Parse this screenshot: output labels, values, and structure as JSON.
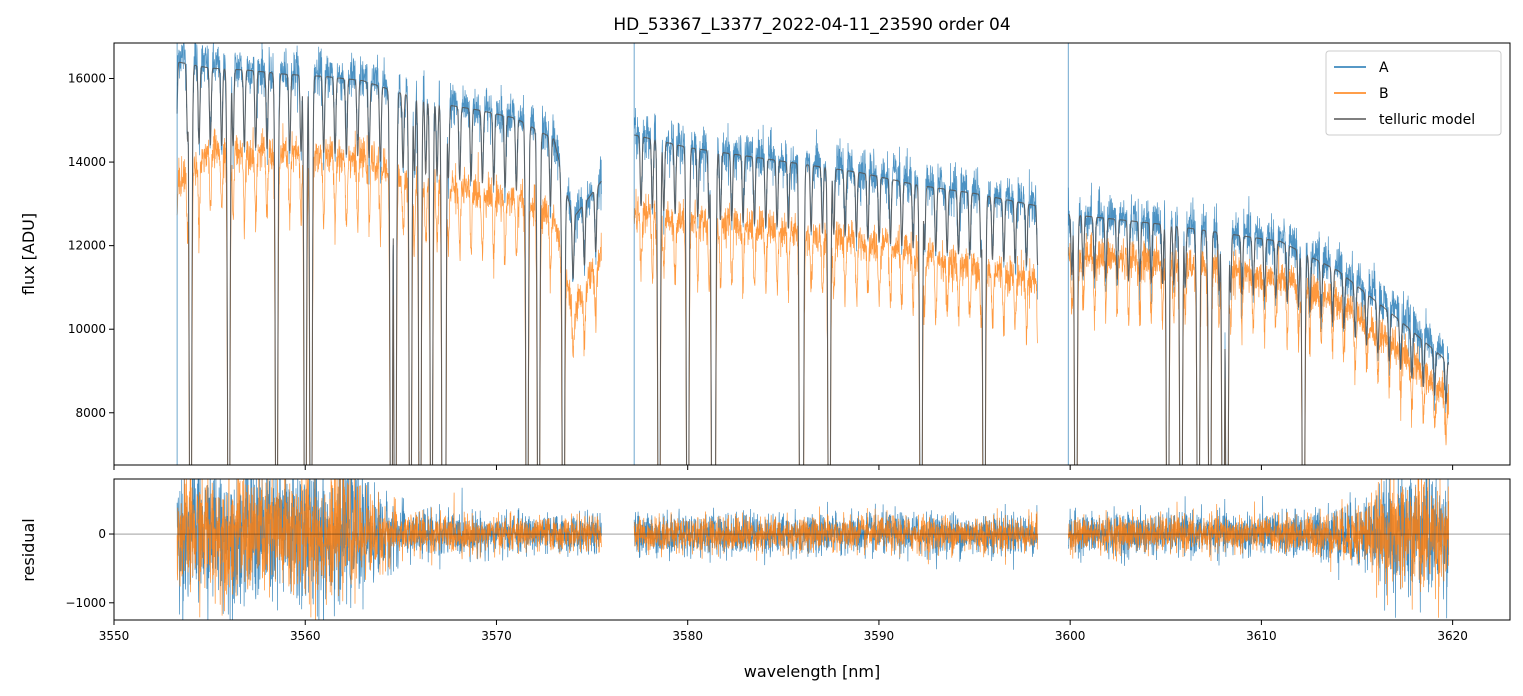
{
  "chart_data": [
    {
      "type": "line",
      "title": "HD_53367_L3377_2022-04-11_23590  order 04",
      "xlabel": "",
      "ylabel": "flux [ADU]",
      "xlim": [
        3550,
        3623
      ],
      "ylim": [
        6750,
        16850
      ],
      "yticks": [
        8000,
        10000,
        12000,
        14000,
        16000
      ],
      "x_tick_labels_hidden": true,
      "legend_position": "top-right",
      "segments": [
        {
          "x_start": 3553.3,
          "x_end": 3575.5
        },
        {
          "x_start": 3577.2,
          "x_end": 3598.3
        },
        {
          "x_start": 3599.9,
          "x_end": 3619.8
        }
      ],
      "series": [
        {
          "name": "A",
          "color": "#1f77b4",
          "x": [
            3553.3,
            3555,
            3557,
            3559,
            3561,
            3563,
            3565,
            3567,
            3569,
            3571,
            3573,
            3574,
            3575.5,
            3577.2,
            3580,
            3583,
            3586,
            3589,
            3592,
            3595,
            3598.3,
            3599.9,
            3602,
            3605,
            3608,
            3611,
            3614,
            3617,
            3619.8
          ],
          "y": [
            16600,
            16300,
            16250,
            16150,
            16100,
            16000,
            15700,
            15450,
            15300,
            15100,
            14600,
            12600,
            13600,
            14700,
            14400,
            14200,
            14000,
            13800,
            13500,
            13300,
            13000,
            12800,
            12700,
            12550,
            12350,
            12150,
            11500,
            10500,
            9300
          ]
        },
        {
          "name": "B",
          "color": "#ff7f0e",
          "x": [
            3553.3,
            3555,
            3557,
            3559,
            3561,
            3563,
            3565,
            3567,
            3569,
            3571,
            3573,
            3574,
            3575.5,
            3577.2,
            3580,
            3583,
            3586,
            3589,
            3592,
            3595,
            3598.3,
            3599.9,
            3602,
            3605,
            3608,
            3611,
            3614,
            3617,
            3619.8
          ],
          "y": [
            13500,
            14300,
            14250,
            14200,
            14150,
            14100,
            13700,
            13500,
            13300,
            13100,
            12700,
            10400,
            11800,
            12800,
            12600,
            12500,
            12300,
            12100,
            11800,
            11500,
            11200,
            11800,
            11750,
            11600,
            11400,
            11200,
            10700,
            9600,
            8300
          ]
        },
        {
          "name": "telluric model",
          "color": "#555555",
          "x": [
            3553.3,
            3555,
            3557,
            3559,
            3561,
            3563,
            3565,
            3567,
            3569,
            3571,
            3573,
            3574,
            3575.5,
            3577.2,
            3580,
            3583,
            3586,
            3589,
            3592,
            3595,
            3598.3,
            3599.9,
            3602,
            3605,
            3608,
            3611,
            3614,
            3617,
            3619.8
          ],
          "y": [
            16400,
            16250,
            16200,
            16100,
            16050,
            15950,
            15650,
            15400,
            15250,
            15050,
            14550,
            12650,
            13550,
            14650,
            14350,
            14150,
            13950,
            13750,
            13450,
            13250,
            12950,
            12750,
            12650,
            12500,
            12300,
            12100,
            11400,
            10300,
            9200
          ]
        }
      ],
      "absorption_lines_x": [
        3554.0,
        3556.0,
        3558.5,
        3560.0,
        3560.3,
        3564.5,
        3564.7,
        3565.5,
        3566.0,
        3566.6,
        3567.2,
        3567.3,
        3571.6,
        3572.2,
        3573.5,
        3578.5,
        3580.0,
        3581.3,
        3581.4,
        3585.9,
        3586.0,
        3587.4,
        3592.2,
        3595.5,
        3600.3,
        3605.1,
        3605.8,
        3606.7,
        3607.3,
        3608.0,
        3608.2,
        3612.2
      ]
    },
    {
      "type": "line",
      "title": "",
      "xlabel": "wavelength [nm]",
      "ylabel": "residual",
      "xlim": [
        3550,
        3623
      ],
      "ylim": [
        -1250,
        800
      ],
      "xticks": [
        3550,
        3560,
        3570,
        3580,
        3590,
        3600,
        3610,
        3620
      ],
      "yticks": [
        -1000,
        0
      ],
      "zero_line": true,
      "series": [
        {
          "name": "A",
          "color": "#1f77b4",
          "noise_amplitude_by_x": {
            "x": [
              3553.3,
              3556,
              3560,
              3562,
              3565,
              3570,
              3575.5,
              3577.2,
              3598.3,
              3599.9,
              3612,
              3615,
              3618,
              3619.8
            ],
            "amp": [
              900,
              900,
              1100,
              900,
              350,
              250,
              250,
              280,
              280,
              280,
              280,
              450,
              900,
              700
            ]
          }
        },
        {
          "name": "B",
          "color": "#ff7f0e",
          "noise_amplitude_by_x": {
            "x": [
              3553.3,
              3556,
              3560,
              3562,
              3565,
              3570,
              3575.5,
              3577.2,
              3598.3,
              3599.9,
              3612,
              3615,
              3618,
              3619.8
            ],
            "amp": [
              750,
              800,
              900,
              750,
              300,
              220,
              220,
              240,
              240,
              240,
              240,
              400,
              850,
              650
            ]
          }
        }
      ]
    }
  ]
}
